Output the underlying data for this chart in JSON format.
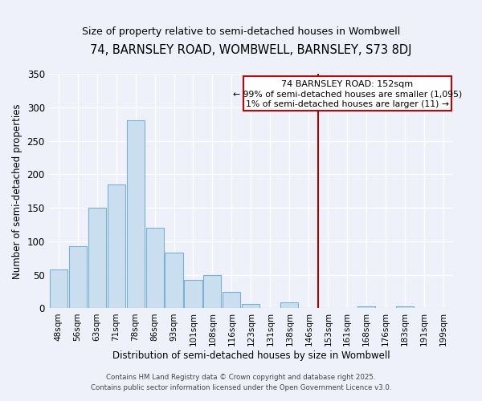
{
  "title": "74, BARNSLEY ROAD, WOMBWELL, BARNSLEY, S73 8DJ",
  "subtitle": "Size of property relative to semi-detached houses in Wombwell",
  "xlabel": "Distribution of semi-detached houses by size in Wombwell",
  "ylabel": "Number of semi-detached properties",
  "bar_color": "#c9dff0",
  "bar_edge_color": "#7ab0d4",
  "bin_labels": [
    "48sqm",
    "56sqm",
    "63sqm",
    "71sqm",
    "78sqm",
    "86sqm",
    "93sqm",
    "101sqm",
    "108sqm",
    "116sqm",
    "123sqm",
    "131sqm",
    "138sqm",
    "146sqm",
    "153sqm",
    "161sqm",
    "168sqm",
    "176sqm",
    "183sqm",
    "191sqm",
    "199sqm"
  ],
  "bin_values": [
    58,
    93,
    150,
    185,
    280,
    120,
    83,
    43,
    50,
    25,
    6,
    0,
    9,
    0,
    0,
    0,
    3,
    0,
    3,
    0,
    0
  ],
  "vline_color": "#aa0000",
  "ylim": [
    0,
    350
  ],
  "yticks": [
    0,
    50,
    100,
    150,
    200,
    250,
    300,
    350
  ],
  "annotation_title": "74 BARNSLEY ROAD: 152sqm",
  "annotation_line1": "← 99% of semi-detached houses are smaller (1,095)",
  "annotation_line2": "1% of semi-detached houses are larger (11) →",
  "annotation_box_facecolor": "#ffffff",
  "annotation_box_edgecolor": "#cc0000",
  "footer_line1": "Contains HM Land Registry data © Crown copyright and database right 2025.",
  "footer_line2": "Contains public sector information licensed under the Open Government Licence v3.0.",
  "background_color": "#eef1fa",
  "grid_color": "#ffffff",
  "title_fontsize": 10.5,
  "subtitle_fontsize": 9
}
